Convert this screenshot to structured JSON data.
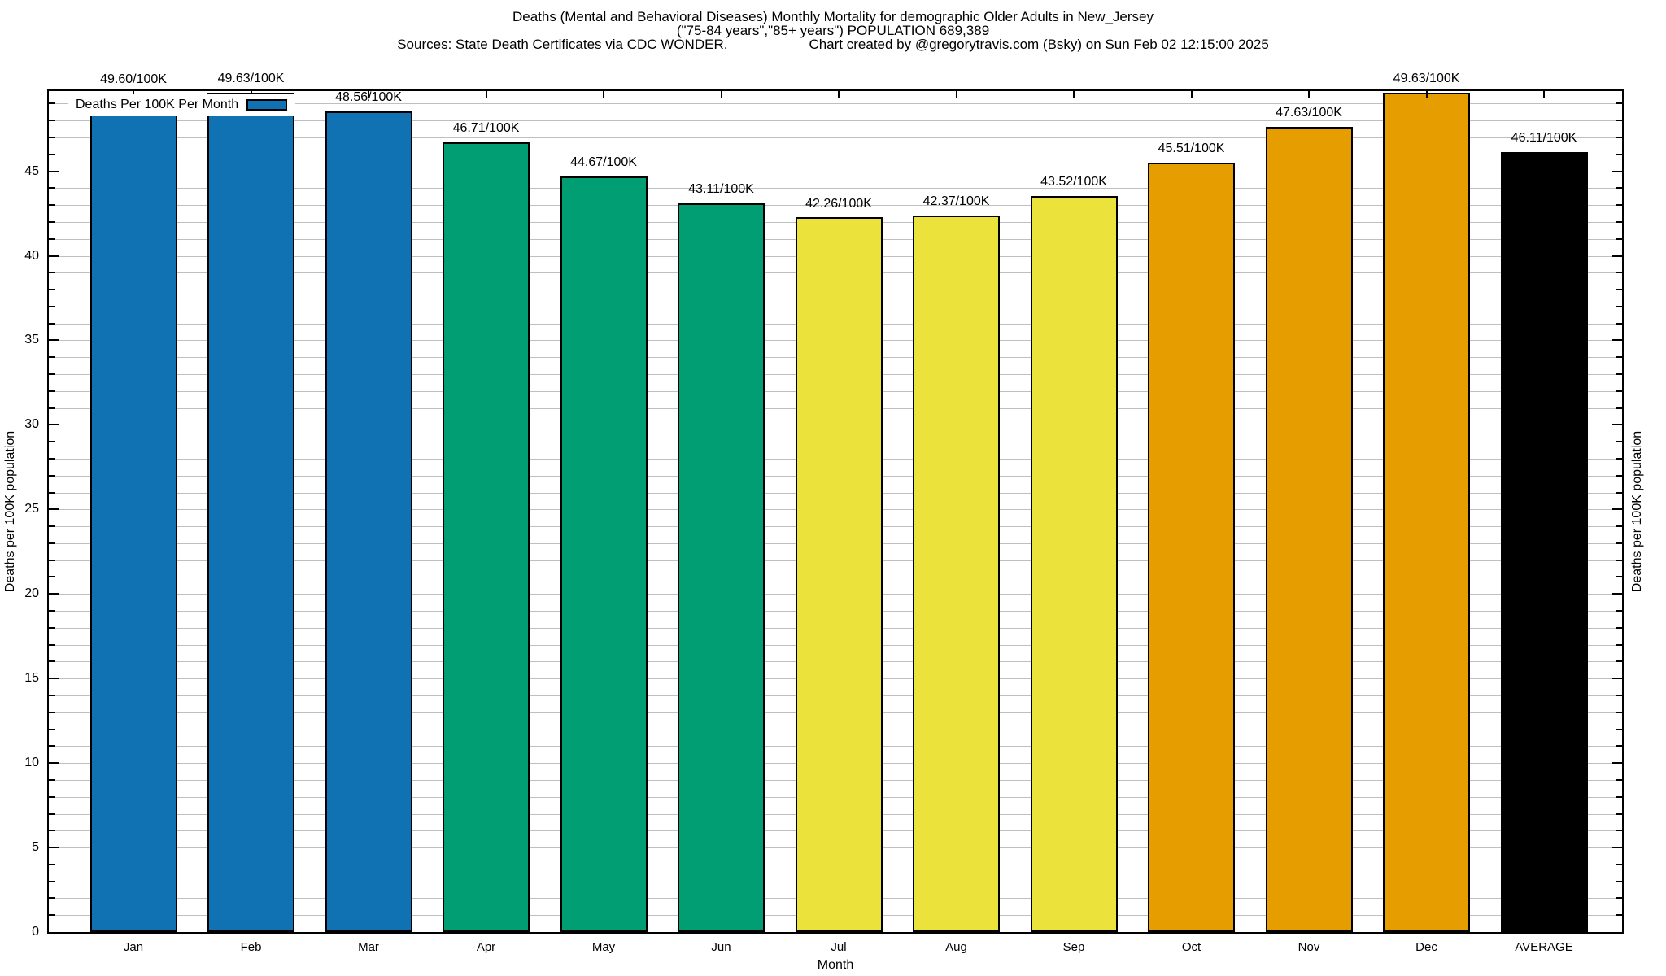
{
  "title": {
    "line1": "Deaths (Mental and Behavioral Diseases) Monthly Mortality for demographic Older Adults in New_Jersey",
    "line2": "(\"75-84 years\",\"85+ years\") POPULATION 689,389",
    "sources": "Sources: State Death Certificates via CDC WONDER.",
    "credit": "Chart created by @gregorytravis.com (Bsky) on Sun Feb 02 12:15:00 2025"
  },
  "legend": {
    "label": "Deaths Per 100K Per Month"
  },
  "axes": {
    "x_title": "Month",
    "y_title": "Deaths per 100K population",
    "y_tick_labels": [
      0,
      5,
      10,
      15,
      20,
      25,
      30,
      35,
      40,
      45
    ],
    "y_minor_step": 1
  },
  "colors": {
    "blue": "#1072B2",
    "green": "#029E73",
    "yellow": "#ECE23C",
    "orange": "#E59D00",
    "black": "#000000",
    "grid": "#BFBFBF"
  },
  "chart_data": {
    "type": "bar",
    "title": "Deaths (Mental and Behavioral Diseases) Monthly Mortality for demographic Older Adults in New_Jersey (\"75-84 years\",\"85+ years\") POPULATION 689,389",
    "categories": [
      "Jan",
      "Feb",
      "Mar",
      "Apr",
      "May",
      "Jun",
      "Jul",
      "Aug",
      "Sep",
      "Oct",
      "Nov",
      "Dec",
      "AVERAGE"
    ],
    "values": [
      49.6,
      49.63,
      48.56,
      46.71,
      44.67,
      43.11,
      42.26,
      42.37,
      43.52,
      45.51,
      47.63,
      49.63,
      46.11
    ],
    "labels": [
      "49.60/100K",
      "49.63/100K",
      "48.56/100K",
      "46.71/100K",
      "44.67/100K",
      "43.11/100K",
      "42.26/100K",
      "42.37/100K",
      "43.52/100K",
      "45.51/100K",
      "47.63/100K",
      "49.63/100K",
      "46.11/100K"
    ],
    "bar_colors": [
      "#1072B2",
      "#1072B2",
      "#1072B2",
      "#029E73",
      "#029E73",
      "#029E73",
      "#ECE23C",
      "#ECE23C",
      "#ECE23C",
      "#E59D00",
      "#E59D00",
      "#E59D00",
      "#000000"
    ],
    "xlabel": "Month",
    "ylabel": "Deaths per 100K population",
    "ylim": [
      0,
      49.74
    ],
    "y_major_ticks": [
      0,
      5,
      10,
      15,
      20,
      25,
      30,
      35,
      40,
      45
    ],
    "y_minor_step": 1,
    "grid": "horizontal-minor",
    "legend_position": "top-left",
    "legend_entry": "Deaths Per 100K Per Month"
  }
}
